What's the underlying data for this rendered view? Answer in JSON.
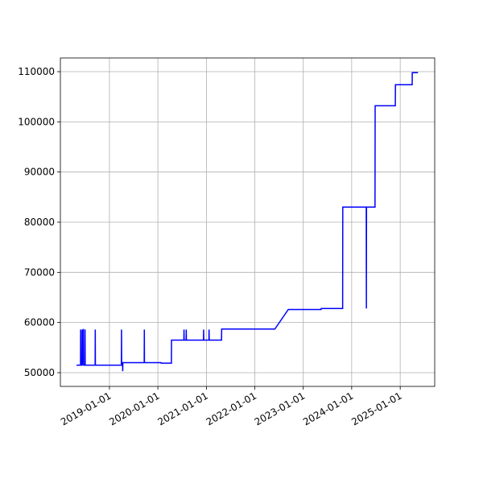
{
  "chart_data": {
    "type": "line",
    "x": [
      "2018-04-28",
      "2018-05-28",
      "2018-05-29",
      "2018-05-30",
      "2018-06-08",
      "2018-06-09",
      "2018-06-10",
      "2018-06-18",
      "2018-06-19",
      "2018-06-20",
      "2018-06-30",
      "2018-07-01",
      "2018-07-02",
      "2018-09-15",
      "2018-09-16",
      "2018-09-17",
      "2019-04-01",
      "2019-04-02",
      "2019-04-03",
      "2019-04-10",
      "2019-04-11",
      "2019-04-12",
      "2019-09-20",
      "2019-09-21",
      "2019-09-22",
      "2020-01-25",
      "2020-01-26",
      "2020-04-12",
      "2020-04-13",
      "2020-07-15",
      "2020-07-16",
      "2020-07-17",
      "2020-08-01",
      "2020-08-02",
      "2020-08-03",
      "2020-12-10",
      "2020-12-11",
      "2020-12-12",
      "2021-01-20",
      "2021-01-21",
      "2021-01-22",
      "2021-04-25",
      "2021-04-26",
      "2022-06-01",
      "2022-09-10",
      "2023-05-15",
      "2023-05-16",
      "2023-10-25",
      "2023-10-26",
      "2024-04-20",
      "2024-04-21",
      "2024-04-22",
      "2024-06-25",
      "2024-06-26",
      "2024-11-25",
      "2024-11-26",
      "2025-04-01",
      "2025-04-02",
      "2025-05-15"
    ],
    "series": [
      {
        "color": "#0000ff",
        "values": [
          51500,
          51500,
          58600,
          51500,
          51500,
          58600,
          51500,
          58600,
          58600,
          51500,
          51500,
          58600,
          51500,
          51500,
          58600,
          51500,
          51500,
          58600,
          51500,
          51500,
          50300,
          52000,
          52000,
          58600,
          52000,
          52000,
          51900,
          51900,
          56500,
          56500,
          58600,
          56500,
          56500,
          58600,
          56500,
          56500,
          58600,
          56500,
          56500,
          58600,
          56500,
          56500,
          58700,
          58700,
          62600,
          62600,
          62800,
          62800,
          83000,
          83000,
          62800,
          83000,
          83000,
          103200,
          103200,
          107400,
          107400,
          109800,
          109800
        ]
      }
    ],
    "xlim": [
      "2017-12-27",
      "2025-09-18"
    ],
    "xticks": [
      "2019-01-01",
      "2020-01-01",
      "2021-01-01",
      "2022-01-01",
      "2023-01-01",
      "2024-01-01",
      "2025-01-01"
    ],
    "ylim": [
      47270,
      112730
    ],
    "yticks": [
      50000,
      60000,
      70000,
      80000,
      90000,
      100000,
      110000
    ],
    "grid": true
  }
}
